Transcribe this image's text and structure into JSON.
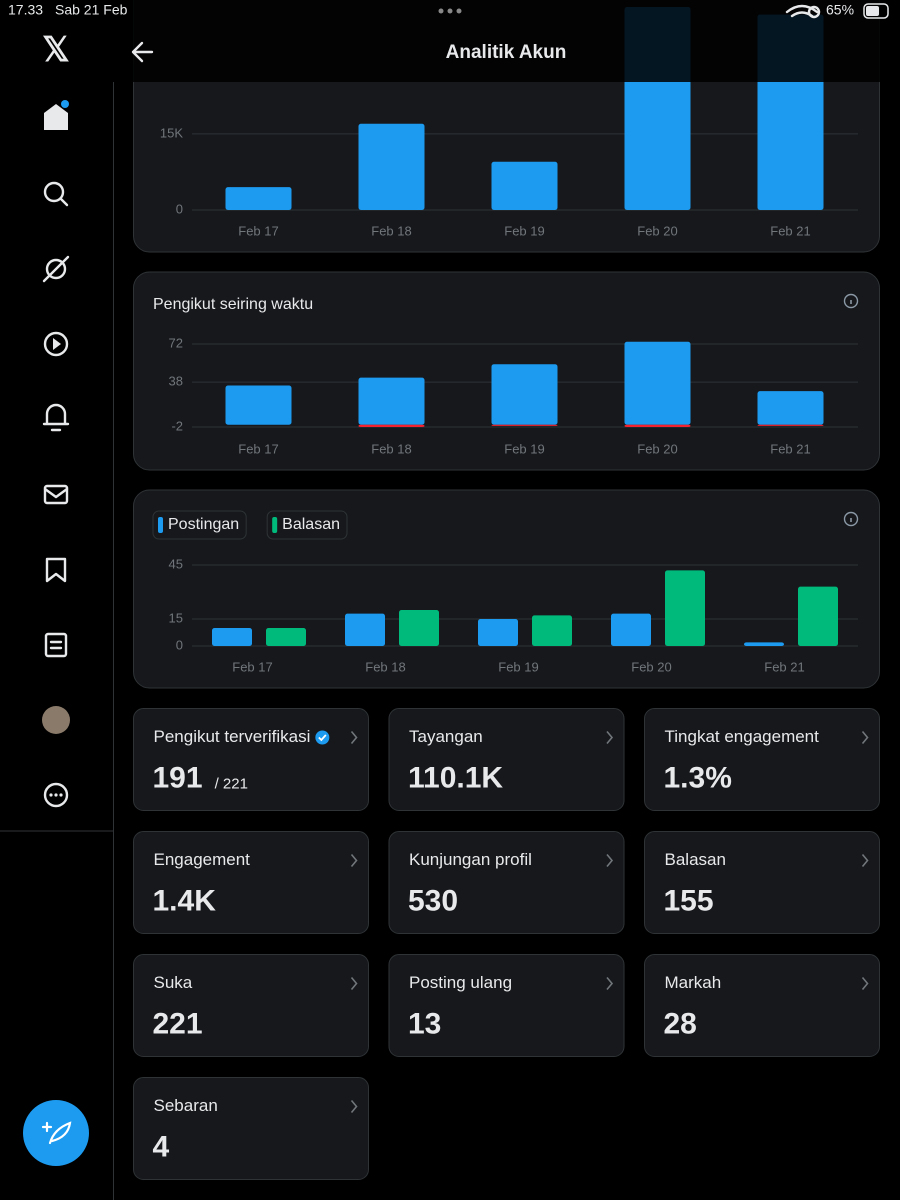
{
  "status_bar": {
    "time": "17.33",
    "date": "Sab 21 Feb",
    "battery": "65%"
  },
  "header": {
    "title": "Analitik Akun"
  },
  "charts": [
    {
      "type": "bar",
      "categories": [
        "Feb 17",
        "Feb 18",
        "Feb 19",
        "Feb 20",
        "Feb 21"
      ],
      "series": [
        {
          "color": "#1d9bf0",
          "values": [
            4500,
            17000,
            9500,
            40000,
            38500
          ]
        }
      ],
      "ylim": [
        0,
        40000
      ],
      "yticks": [
        0,
        {
          "value": 15000,
          "label": "15K"
        }
      ],
      "grid": true
    },
    {
      "type": "bar",
      "title": "Pengikut seiring waktu",
      "categories": [
        "Feb 17",
        "Feb 18",
        "Feb 19",
        "Feb 20",
        "Feb 21"
      ],
      "stacked": true,
      "series": [
        {
          "color": "#1d9bf0",
          "values": [
            35,
            42,
            54,
            74,
            30
          ]
        },
        {
          "color": "#f4212e",
          "values": [
            0,
            -2,
            -1,
            -2,
            -1
          ]
        }
      ],
      "ylim": [
        -2,
        72
      ],
      "yticks": [
        -2,
        38,
        72
      ],
      "grid": true
    },
    {
      "type": "bar",
      "categories": [
        "Feb 17",
        "Feb 18",
        "Feb 19",
        "Feb 20",
        "Feb 21"
      ],
      "series": [
        {
          "name": "Postingan",
          "color": "#1d9bf0",
          "values": [
            10,
            18,
            15,
            18,
            2
          ]
        },
        {
          "name": "Balasan",
          "color": "#00ba7c",
          "values": [
            10,
            20,
            17,
            42,
            33
          ]
        }
      ],
      "ylim": [
        0,
        45
      ],
      "yticks": [
        0,
        15,
        45
      ],
      "grid": true
    }
  ],
  "cards": [
    {
      "label": "Pengikut terverifikasi",
      "value": "191",
      "total": "/ 221",
      "verified": true
    },
    {
      "label": "Tayangan",
      "value": "110.1K"
    },
    {
      "label": "Tingkat engagement",
      "value": "1.3%"
    },
    {
      "label": "Engagement",
      "value": "1.4K"
    },
    {
      "label": "Kunjungan profil",
      "value": "530"
    },
    {
      "label": "Balasan",
      "value": "155"
    },
    {
      "label": "Suka",
      "value": "221"
    },
    {
      "label": "Posting ulang",
      "value": "13"
    },
    {
      "label": "Markah",
      "value": "28"
    },
    {
      "label": "Sebaran",
      "value": "4"
    }
  ]
}
